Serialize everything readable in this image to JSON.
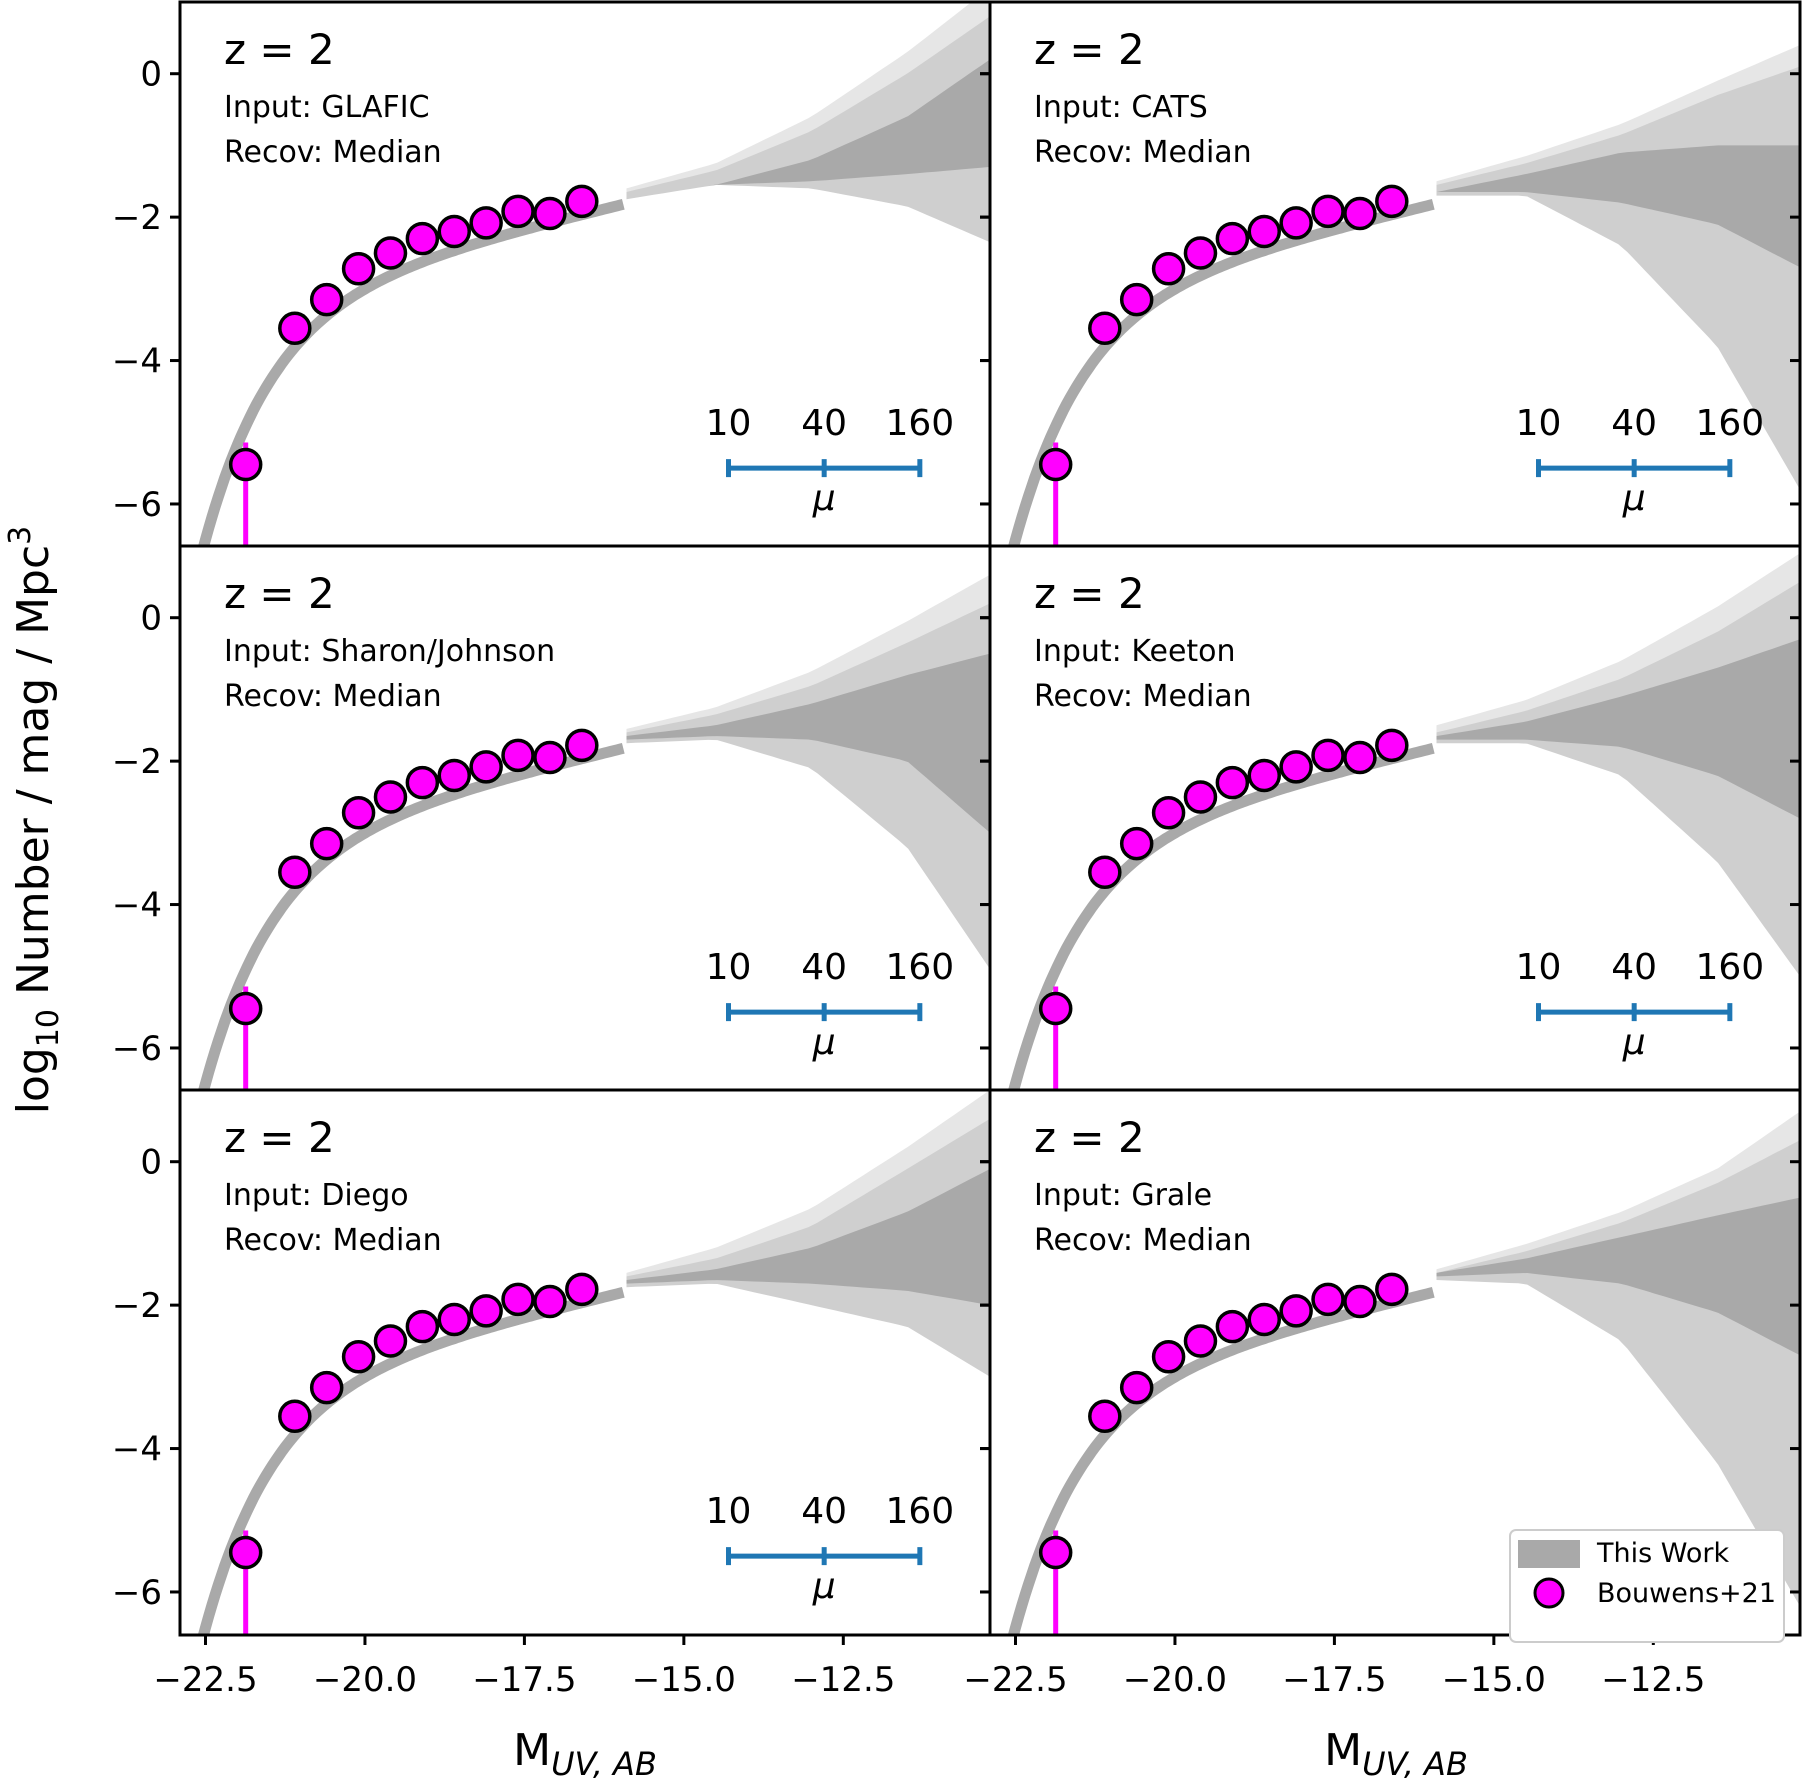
{
  "figure": {
    "ylabel_main": "log",
    "ylabel_sub": "10",
    "ylabel_rest": " Number / mag / Mpc",
    "ylabel_sup": "3",
    "xlabel_main": "M",
    "xlabel_sub": "UV, AB"
  },
  "colors": {
    "points": "#ff00ff",
    "mu_bar": "#1f77b4",
    "band_light": "#e6e6e6",
    "band_mid": "#cfcfcf",
    "band_dark": "#a9a9a9",
    "curve": "#a9a9a9"
  },
  "legend": {
    "this_work": "This Work",
    "bouwens": "Bouwens+21"
  },
  "panels": [
    {
      "title": "z = 2",
      "input": "Input: GLAFIC",
      "recov": "Recov: Median",
      "show_mu": true
    },
    {
      "title": "z = 2",
      "input": "Input: CATS",
      "recov": "Recov: Median",
      "show_mu": true
    },
    {
      "title": "z = 2",
      "input": "Input: Sharon/Johnson",
      "recov": "Recov: Median",
      "show_mu": true
    },
    {
      "title": "z = 2",
      "input": "Input: Keeton",
      "recov": "Recov: Median",
      "show_mu": true
    },
    {
      "title": "z = 2",
      "input": "Input: Diego",
      "recov": "Recov: Median",
      "show_mu": true
    },
    {
      "title": "z = 2",
      "input": "Input: Grale",
      "recov": "Recov: Median",
      "show_mu": false
    }
  ],
  "mu_scale": {
    "labels": [
      "10",
      "40",
      "160"
    ],
    "x": [
      -14.3,
      -12.8,
      -11.3
    ],
    "y": -5.5,
    "symbol": "μ"
  },
  "chart_data": {
    "type": "scatter",
    "title": "",
    "xlabel": "M_UV,AB",
    "ylabel": "log10 Number / mag / Mpc^3",
    "xlim": [
      -22.9,
      -10.2
    ],
    "ylim": [
      -6.6,
      1.0
    ],
    "xticks": [
      -22.5,
      -20.0,
      -17.5,
      -15.0,
      -12.5
    ],
    "xtick_labels": [
      "−22.5",
      "−20.0",
      "−17.5",
      "−15.0",
      "−12.5"
    ],
    "yticks": [
      0,
      -2,
      -4,
      -6
    ],
    "ytick_labels": [
      "0",
      "−2",
      "−4",
      "−6"
    ],
    "series": [
      {
        "name": "Bouwens+21",
        "x": [
          -21.87,
          -21.1,
          -20.6,
          -20.1,
          -19.6,
          -19.1,
          -18.6,
          -18.1,
          -17.6,
          -17.1,
          -16.6
        ],
        "y": [
          -5.45,
          -3.55,
          -3.15,
          -2.72,
          -2.5,
          -2.3,
          -2.2,
          -2.08,
          -1.92,
          -1.95,
          -1.78
        ]
      },
      {
        "name": "This Work",
        "band_x": [
          -15.9,
          -14.5,
          -13.0,
          -11.5,
          -10.2
        ],
        "upper_outer": [
          [
            -1.6,
            -1.25,
            -0.6,
            0.3,
            1.2
          ],
          [
            -1.5,
            -1.15,
            -0.7,
            -0.1,
            0.4
          ],
          [
            -1.55,
            -1.25,
            -0.75,
            -0.05,
            0.6
          ],
          [
            -1.5,
            -1.15,
            -0.6,
            0.15,
            0.9
          ],
          [
            -1.55,
            -1.2,
            -0.65,
            0.2,
            1.0
          ],
          [
            -1.5,
            -1.15,
            -0.7,
            -0.1,
            0.7
          ]
        ],
        "upper_mid": [
          [
            -1.65,
            -1.35,
            -0.8,
            0.0,
            0.8
          ],
          [
            -1.55,
            -1.25,
            -0.85,
            -0.3,
            0.1
          ],
          [
            -1.6,
            -1.35,
            -0.95,
            -0.35,
            0.2
          ],
          [
            -1.6,
            -1.3,
            -0.85,
            -0.2,
            0.5
          ],
          [
            -1.6,
            -1.35,
            -0.9,
            -0.1,
            0.6
          ],
          [
            -1.55,
            -1.25,
            -0.85,
            -0.3,
            0.3
          ]
        ],
        "upper_dark": [
          [
            -1.7,
            -1.55,
            -1.2,
            -0.6,
            0.2
          ],
          [
            -1.65,
            -1.4,
            -1.1,
            -1.0,
            -1.0
          ],
          [
            -1.65,
            -1.5,
            -1.2,
            -0.8,
            -0.5
          ],
          [
            -1.65,
            -1.45,
            -1.1,
            -0.7,
            -0.3
          ],
          [
            -1.65,
            -1.5,
            -1.2,
            -0.7,
            -0.1
          ],
          [
            -1.55,
            -1.35,
            -1.05,
            -0.75,
            -0.5
          ]
        ],
        "lower_dark": [
          [
            -1.7,
            -1.55,
            -1.5,
            -1.4,
            -1.3
          ],
          [
            -1.65,
            -1.65,
            -1.8,
            -2.1,
            -2.7
          ],
          [
            -1.7,
            -1.65,
            -1.7,
            -2.0,
            -3.0
          ],
          [
            -1.7,
            -1.7,
            -1.8,
            -2.2,
            -2.8
          ],
          [
            -1.7,
            -1.65,
            -1.7,
            -1.8,
            -2.0
          ],
          [
            -1.6,
            -1.55,
            -1.7,
            -2.1,
            -2.7
          ]
        ],
        "lower_outer": [
          [
            -1.75,
            -1.55,
            -1.6,
            -1.85,
            -2.35
          ],
          [
            -1.7,
            -1.7,
            -2.4,
            -3.8,
            -5.8
          ],
          [
            -1.75,
            -1.7,
            -2.1,
            -3.2,
            -4.9
          ],
          [
            -1.75,
            -1.75,
            -2.2,
            -3.4,
            -5.0
          ],
          [
            -1.75,
            -1.7,
            -2.0,
            -2.3,
            -3.0
          ],
          [
            -1.65,
            -1.7,
            -2.5,
            -4.2,
            -6.2
          ]
        ]
      }
    ]
  }
}
